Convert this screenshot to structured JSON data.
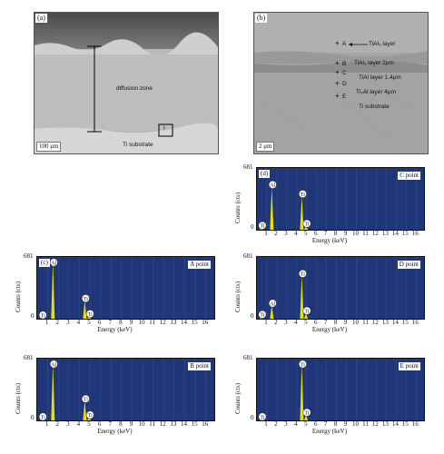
{
  "panel_a": {
    "tag": "(a)",
    "scale": "100 μm",
    "zone_label": "diffusion zone",
    "substrate_label": "Ti substrate",
    "box_label": "I"
  },
  "panel_b": {
    "tag": "(b)",
    "scale": "2 μm",
    "points": [
      {
        "letter": "A",
        "text": "TiAl₃ layer"
      },
      {
        "letter": "B",
        "text": "TiAl₂ layer  2μm"
      },
      {
        "letter": "C",
        "text": "TiAl layer  1.4μm"
      },
      {
        "letter": "D",
        "text": "Ti₃Al layer  4μm"
      },
      {
        "letter": "E",
        "text": "Ti substrate"
      }
    ]
  },
  "spectra": [
    {
      "id": "d",
      "tag": "(d)",
      "name": "C point",
      "ymax": "681",
      "yzero": "0",
      "ylabel": "Counts (cts)",
      "xlabel": "Energy (keV)",
      "ticks": [
        "1",
        "2",
        "3",
        "4",
        "5",
        "6",
        "7",
        "8",
        "9",
        "10",
        "11",
        "12",
        "13",
        "14",
        "15",
        "16"
      ],
      "peaks": [
        {
          "label": "Ti",
          "x": 0.45,
          "h": 0.04
        },
        {
          "label": "Al",
          "x": 1.49,
          "h": 0.7
        },
        {
          "label": "Ti",
          "x": 4.51,
          "h": 0.55
        },
        {
          "label": "Ti",
          "x": 4.93,
          "h": 0.07
        }
      ]
    },
    {
      "id": "c",
      "tag": "(c)",
      "name": "A point",
      "ymax": "681",
      "yzero": "0",
      "ylabel": "Counts (cts)",
      "xlabel": "Energy (keV)",
      "ticks": [
        "1",
        "2",
        "3",
        "4",
        "5",
        "6",
        "7",
        "8",
        "9",
        "10",
        "11",
        "12",
        "13",
        "14",
        "15",
        "16"
      ],
      "peaks": [
        {
          "label": "Ti",
          "x": 0.45,
          "h": 0.03
        },
        {
          "label": "Al",
          "x": 1.49,
          "h": 0.93
        },
        {
          "label": "Ti",
          "x": 4.51,
          "h": 0.3
        },
        {
          "label": "Ti",
          "x": 4.93,
          "h": 0.05
        }
      ]
    },
    {
      "id": "e_d",
      "tag": "",
      "name": "D point",
      "ymax": "681",
      "yzero": "0",
      "ylabel": "Counts (cts)",
      "xlabel": "Energy (keV)",
      "ticks": [
        "1",
        "2",
        "3",
        "4",
        "5",
        "6",
        "7",
        "8",
        "9",
        "10",
        "11",
        "12",
        "13",
        "14",
        "15",
        "16"
      ],
      "peaks": [
        {
          "label": "Ti",
          "x": 0.45,
          "h": 0.04
        },
        {
          "label": "Al",
          "x": 1.49,
          "h": 0.22
        },
        {
          "label": "Ti",
          "x": 4.51,
          "h": 0.7
        },
        {
          "label": "Ti",
          "x": 4.93,
          "h": 0.1
        }
      ]
    },
    {
      "id": "b",
      "tag": "",
      "name": "B point",
      "ymax": "681",
      "yzero": "0",
      "ylabel": "Counts (cts)",
      "xlabel": "Energy (keV)",
      "ticks": [
        "1",
        "2",
        "3",
        "4",
        "5",
        "6",
        "7",
        "8",
        "9",
        "10",
        "11",
        "12",
        "13",
        "14",
        "15",
        "16"
      ],
      "peaks": [
        {
          "label": "Ti",
          "x": 0.45,
          "h": 0.03
        },
        {
          "label": "Al",
          "x": 1.49,
          "h": 0.93
        },
        {
          "label": "Ti",
          "x": 4.51,
          "h": 0.32
        },
        {
          "label": "Ti",
          "x": 4.93,
          "h": 0.06
        }
      ]
    },
    {
      "id": "e",
      "tag": "",
      "name": "E point",
      "ymax": "681",
      "yzero": "0",
      "ylabel": "Counts (cts)",
      "xlabel": "Energy (keV)",
      "ticks": [
        "1",
        "2",
        "3",
        "4",
        "5",
        "6",
        "7",
        "8",
        "9",
        "10",
        "11",
        "12",
        "13",
        "14",
        "15",
        "16"
      ],
      "peaks": [
        {
          "label": "Ti",
          "x": 0.45,
          "h": 0.03
        },
        {
          "label": "Ti",
          "x": 4.51,
          "h": 0.92
        },
        {
          "label": "Ti",
          "x": 4.93,
          "h": 0.1
        }
      ]
    }
  ],
  "colors": {
    "plot_bg": "#1f3678",
    "peak": "#e8e000"
  }
}
